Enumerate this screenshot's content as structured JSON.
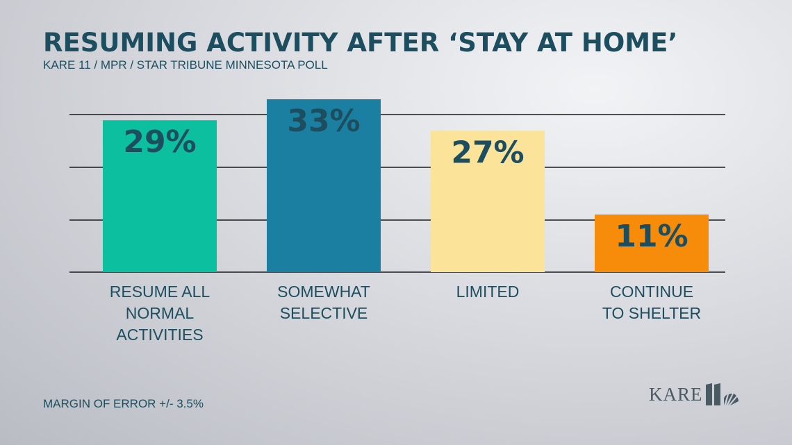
{
  "title": "RESUMING ACTIVITY AFTER ‘STAY AT HOME’",
  "subtitle": "KARE 11 / MPR / STAR TRIBUNE MINNESOTA POLL",
  "footnote": "MARGIN OF ERROR +/- 3.5%",
  "logo": {
    "text": "KARE",
    "mark_icon": "kare-11-peacock-icon"
  },
  "colors": {
    "text": "#1d4e5f",
    "gridline": "#1a1a1a"
  },
  "chart_data": {
    "type": "bar",
    "title": "RESUMING ACTIVITY AFTER ‘STAY AT HOME’",
    "categories": [
      [
        "RESUME ALL",
        "NORMAL",
        "ACTIVITIES"
      ],
      [
        "SOMEWHAT",
        "SELECTIVE"
      ],
      [
        "LIMITED"
      ],
      [
        "CONTINUE",
        "TO SHELTER"
      ]
    ],
    "values": [
      29,
      33,
      27,
      11
    ],
    "data_labels": [
      "29%",
      "33%",
      "27%",
      "11%"
    ],
    "bar_colors": [
      "#0cbf9e",
      "#1a7fa0",
      "#fbe49a",
      "#f78b0a"
    ],
    "ylim": [
      0,
      33
    ],
    "grid": true,
    "xlabel": "",
    "ylabel": ""
  }
}
